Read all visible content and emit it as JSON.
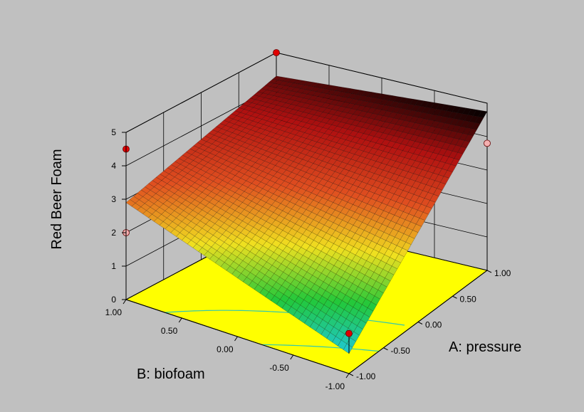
{
  "chart_data": {
    "type": "surface3d",
    "title": "",
    "xlabel": "A: pressure",
    "ylabel": "B: biofoam",
    "zlabel": "Red Beer Foam",
    "x_ticks": [
      "-1.00",
      "-0.50",
      "0.00",
      "0.50",
      "1.00"
    ],
    "y_ticks": [
      "-1.00",
      "-0.50",
      "0.00",
      "0.50",
      "1.00"
    ],
    "z_ticks": [
      "0",
      "1",
      "2",
      "3",
      "4",
      "5"
    ],
    "xlim": [
      -1,
      1
    ],
    "ylim": [
      -1,
      1
    ],
    "zlim": [
      0,
      5
    ],
    "surface_corners": [
      {
        "x": -1,
        "y": -1,
        "z": 0.6
      },
      {
        "x": 1,
        "y": -1,
        "z": 4.75
      },
      {
        "x": -1,
        "y": 1,
        "z": 2.9
      },
      {
        "x": 1,
        "y": 1,
        "z": 4.3
      }
    ],
    "design_points": [
      {
        "x": -1,
        "y": -1,
        "observed": 1.2,
        "surface": 0.6
      },
      {
        "x": 1,
        "y": -1,
        "observed": 3.8,
        "surface": 4.75
      },
      {
        "x": -1,
        "y": 1,
        "observed": 4.5,
        "surface": 2.9
      },
      {
        "x": 1,
        "y": 1,
        "observed": 5.0,
        "surface": 4.3
      },
      {
        "x": -1,
        "y": 1,
        "observed": 2.0,
        "surface": 2.9
      }
    ],
    "colormap": [
      "#1fc8d8",
      "#22c83a",
      "#f0e020",
      "#e05020",
      "#b01010",
      "#000000"
    ],
    "floor_color": "#ffff00",
    "background_color": "#c0c0c0",
    "grid": true
  }
}
